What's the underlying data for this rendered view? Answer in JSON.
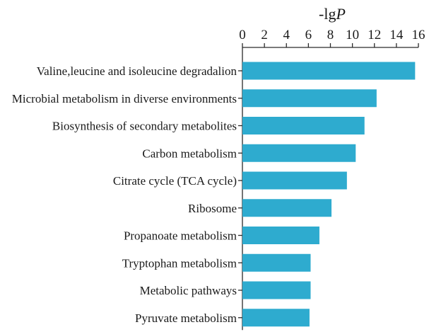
{
  "chart_data": {
    "type": "bar",
    "orientation": "horizontal",
    "x_axis_position": "top",
    "xlabel": "-lgP",
    "xlabel_parts": [
      {
        "text": "-lg",
        "italic": false
      },
      {
        "text": "P",
        "italic": true
      }
    ],
    "ylabel": "",
    "title": "",
    "xlim": [
      0,
      16
    ],
    "xticks": [
      0,
      2,
      4,
      6,
      8,
      10,
      12,
      14,
      16
    ],
    "grid": false,
    "legend": "none",
    "bar_color": "#2eabcf",
    "categories": [
      "Valine,leucine and isoleucine degradalion",
      "Microbial metabolism in diverse environments",
      "Biosynthesis of secondary metabolites",
      "Carbon metabolism",
      "Citrate cycle (TCA cycle)",
      "Ribosome",
      "Propanoate metabolism",
      "Tryptophan metabolism",
      "Metabolic pathways",
      "Pyruvate metabolism"
    ],
    "values": [
      15.7,
      12.2,
      11.1,
      10.3,
      9.5,
      8.1,
      7.0,
      6.2,
      6.2,
      6.1
    ]
  }
}
